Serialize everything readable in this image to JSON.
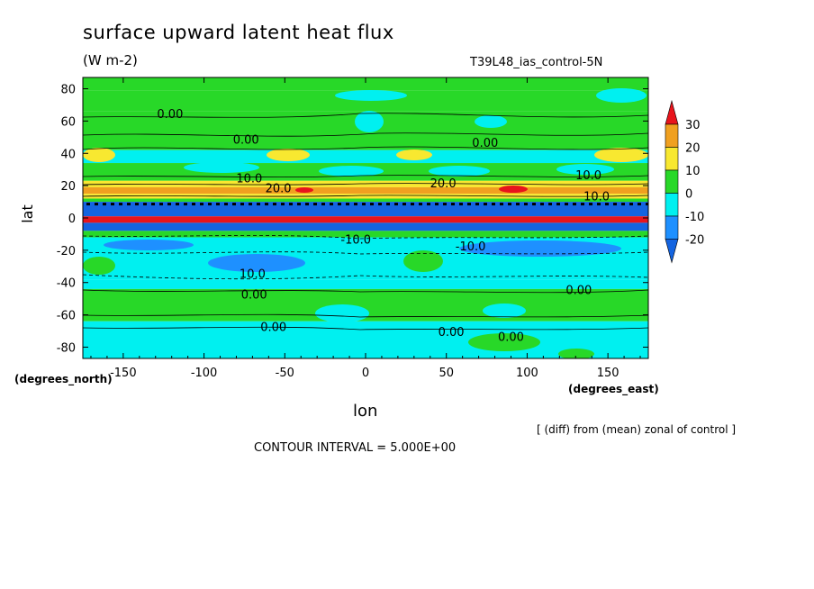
{
  "title": "surface upward latent heat flux",
  "units": "(W m-2)",
  "run_label": "T39L48_ias_control-5N",
  "ylabel": "lat",
  "xlabel": "lon",
  "y_unit_label": "(degrees_north)",
  "x_unit_label": "(degrees_east)",
  "note": "[ (diff) from (mean) zonal of control ]",
  "contour_interval": "CONTOUR INTERVAL = 5.000E+00",
  "chart_data": {
    "type": "heatmap",
    "xlim": [
      -175,
      175
    ],
    "ylim": [
      -87,
      87
    ],
    "x_ticks": [
      -150,
      -100,
      -50,
      0,
      50,
      100,
      150
    ],
    "x_tick_labels": [
      "-150",
      "-100",
      "-50",
      "0",
      "50",
      "100",
      "150"
    ],
    "y_ticks": [
      -80,
      -60,
      -40,
      -20,
      0,
      20,
      40,
      60,
      80
    ],
    "y_tick_labels": [
      "-80",
      "-60",
      "-40",
      "-20",
      "0",
      "20",
      "40",
      "60",
      "80"
    ],
    "colorbar": {
      "labels": [
        "30",
        "20",
        "10",
        "0",
        "-10",
        "-20"
      ],
      "bins": [
        {
          "range": "> 30",
          "color": "#e8141c"
        },
        {
          "range": "20 to 30",
          "color": "#f0a020"
        },
        {
          "range": "10 to 20",
          "color": "#f8e830"
        },
        {
          "range": "0 to 10",
          "color": "#28d828"
        },
        {
          "range": "-10 to 0",
          "color": "#00f0f0"
        },
        {
          "range": "-20 to -10",
          "color": "#1e90ff"
        },
        {
          "range": "< -20",
          "color": "#1464e0"
        }
      ]
    },
    "contour_labels": [
      {
        "lon": -121,
        "lat": 62,
        "text": "0.00"
      },
      {
        "lon": -74,
        "lat": 46,
        "text": "0.00"
      },
      {
        "lon": 74,
        "lat": 44,
        "text": "0.00"
      },
      {
        "lon": -72,
        "lat": 22,
        "text": "10.0"
      },
      {
        "lon": -54,
        "lat": 16,
        "text": "20.0"
      },
      {
        "lon": 48,
        "lat": 19,
        "text": "20.0"
      },
      {
        "lon": 138,
        "lat": 24,
        "text": "10.0"
      },
      {
        "lon": 143,
        "lat": 11,
        "text": "10.0"
      },
      {
        "lon": -6,
        "lat": -16,
        "text": "-10.0"
      },
      {
        "lon": 65,
        "lat": -20,
        "text": "-10.0"
      },
      {
        "lon": -70,
        "lat": -37,
        "text": "10.0"
      },
      {
        "lon": -69,
        "lat": -50,
        "text": "0.00"
      },
      {
        "lon": 132,
        "lat": -47,
        "text": "0.00"
      },
      {
        "lon": -57,
        "lat": -70,
        "text": "0.00"
      },
      {
        "lon": 53,
        "lat": -73,
        "text": "0.00"
      },
      {
        "lon": 90,
        "lat": -76,
        "text": "0.00"
      }
    ],
    "bands": [
      {
        "lat_top": 87,
        "lat_bottom": 79,
        "value_class": "0 to 10"
      },
      {
        "lat_top": 79,
        "lat_bottom": 66,
        "value_class": "0 to 10"
      },
      {
        "lat_top": 66,
        "lat_bottom": 42,
        "value_class": "0 to 10"
      },
      {
        "lat_top": 42,
        "lat_bottom": 34,
        "value_class": "-10 to 0"
      },
      {
        "lat_top": 34,
        "lat_bottom": 23,
        "value_class": "0 to 10"
      },
      {
        "lat_top": 23,
        "lat_bottom": 19,
        "value_class": "10 to 20"
      },
      {
        "lat_top": 19,
        "lat_bottom": 15,
        "value_class": "20 to 30"
      },
      {
        "lat_top": 15,
        "lat_bottom": 12,
        "value_class": "10 to 20"
      },
      {
        "lat_top": 12,
        "lat_bottom": 10,
        "value_class": "0 to 10"
      },
      {
        "lat_top": 10,
        "lat_bottom": 1,
        "value_class": "< -20"
      },
      {
        "lat_top": 1,
        "lat_bottom": -3,
        "value_class": "> 30"
      },
      {
        "lat_top": -3,
        "lat_bottom": -8,
        "value_class": "< -20"
      },
      {
        "lat_top": -8,
        "lat_bottom": -12,
        "value_class": "0 to 10"
      },
      {
        "lat_top": -12,
        "lat_bottom": -38,
        "value_class": "-10 to 0"
      },
      {
        "lat_top": -38,
        "lat_bottom": -44,
        "value_class": "-10 to 0"
      },
      {
        "lat_top": -44,
        "lat_bottom": -64,
        "value_class": "0 to 10"
      },
      {
        "lat_top": -64,
        "lat_bottom": -87,
        "value_class": "-10 to 0"
      }
    ]
  }
}
